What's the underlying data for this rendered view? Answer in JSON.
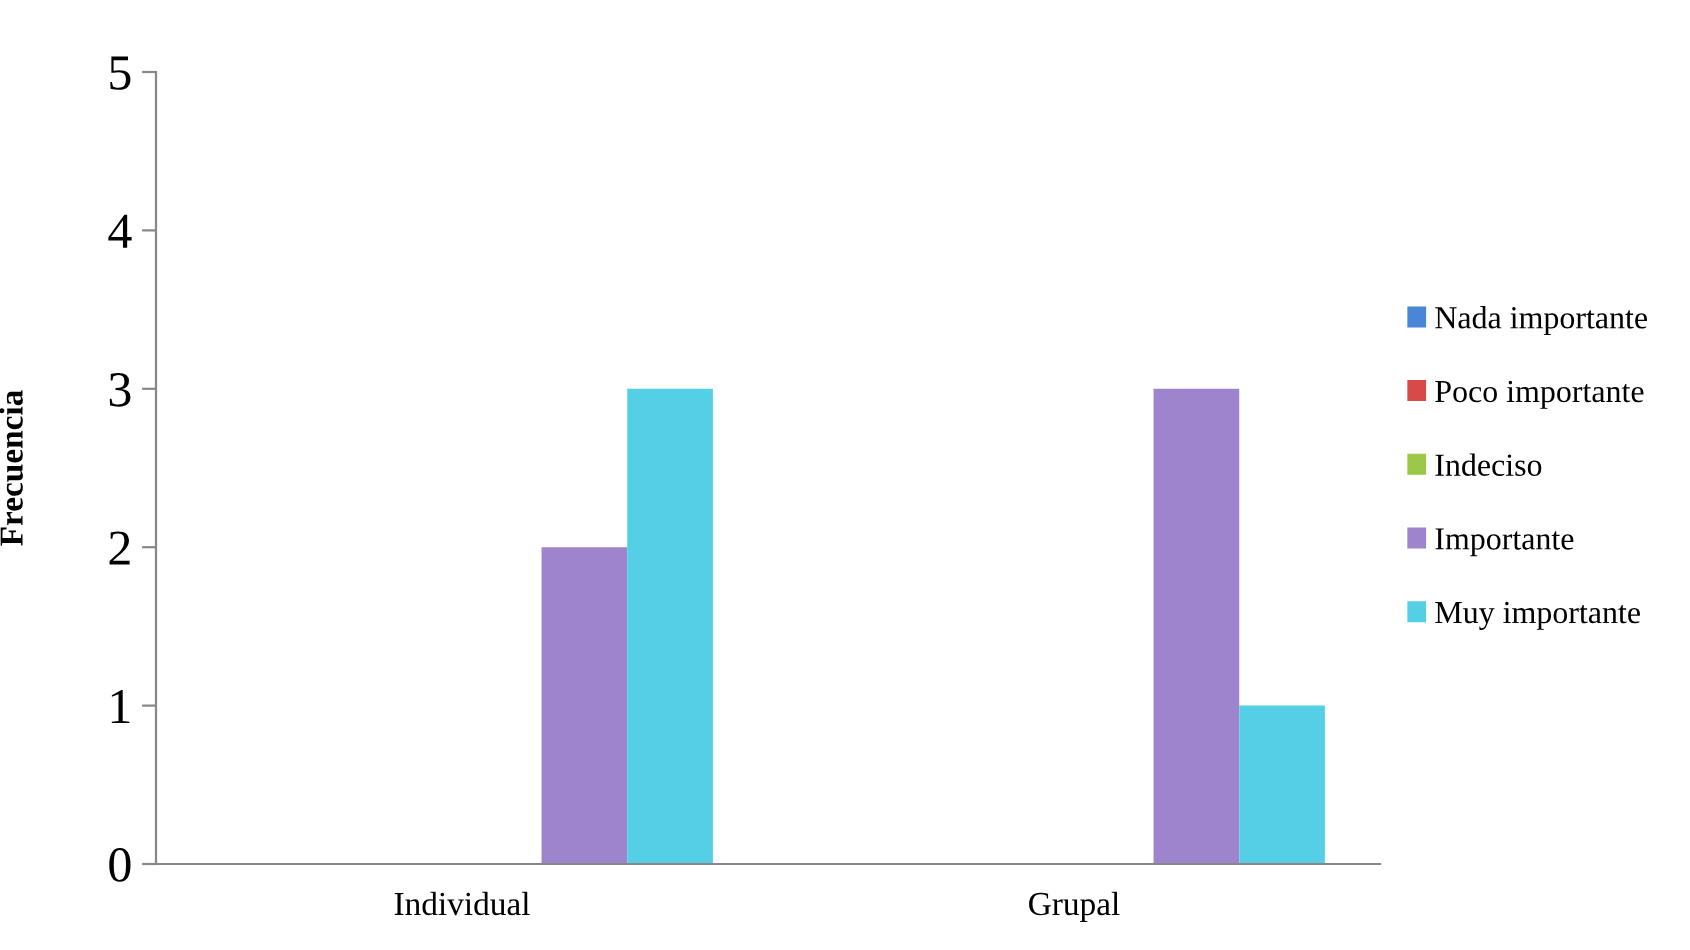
{
  "chart_data": {
    "type": "bar",
    "ylabel": "Frecuencia",
    "categories": [
      "Individual",
      "Grupal"
    ],
    "series": [
      {
        "name": "Nada importante",
        "color": "#4a86d8",
        "values": [
          0,
          0
        ]
      },
      {
        "name": "Poco importante",
        "color": "#d84a4a",
        "values": [
          0,
          0
        ]
      },
      {
        "name": "Indeciso",
        "color": "#9cc84a",
        "values": [
          0,
          0
        ]
      },
      {
        "name": "Importante",
        "color": "#9e84cc",
        "values": [
          2,
          3
        ]
      },
      {
        "name": "Muy importante",
        "color": "#55cfe6",
        "values": [
          3,
          1
        ]
      }
    ],
    "ylim": [
      0,
      5
    ],
    "yticks": [
      0,
      1,
      2,
      3,
      4,
      5
    ],
    "grid": false,
    "legend": "right"
  }
}
